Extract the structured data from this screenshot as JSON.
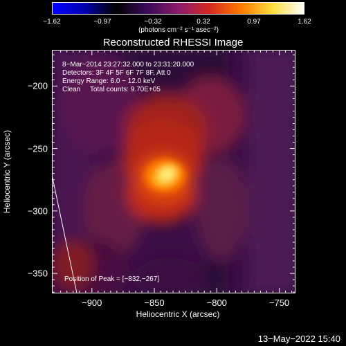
{
  "colorbar": {
    "ticks": [
      "-1.62",
      "-0.97",
      "-0.32",
      "0.32",
      "0.97",
      "1.62"
    ],
    "unit_label": "(photons cm⁻² s⁻¹ asec⁻²)",
    "colors": [
      "#0000ff",
      "#0000b0",
      "#000000",
      "#3a0a5a",
      "#8c1a6a",
      "#d42a20",
      "#ff7a00",
      "#ffdd40",
      "#ffffff"
    ]
  },
  "chart_data": {
    "type": "heatmap",
    "title": "Reconstructed RHESSI Image",
    "xlabel": "Heliocentric X (arcsec)",
    "ylabel": "Heliocentric Y (arcsec)",
    "xlim": [
      -932,
      -737
    ],
    "ylim": [
      -366,
      -171
    ],
    "xticks": [
      -900,
      -850,
      -800,
      -750
    ],
    "yticks": [
      -200,
      -250,
      -300,
      -350
    ],
    "xtick_labels": [
      "−900",
      "−850",
      "−800",
      "−750"
    ],
    "ytick_labels": [
      "−200",
      "−250",
      "−300",
      "−350"
    ],
    "peak": {
      "x": -832,
      "y": -267
    },
    "annotations": [
      "8−Mar−2014 23:27:32.000 to 23:31:20.000",
      "Detectors: 3F 4F 5F 6F 7F 8F, Att 0",
      "Energy Range: 6.0 − 12.0 keV",
      "Clean     Total counts: 9.70E+05"
    ],
    "peak_label": "Position of Peak = [−832,−267]",
    "limb_line": [
      [
        -932,
        -271
      ],
      [
        -912,
        -366
      ]
    ]
  },
  "timestamp": "13−May−2022 15:40"
}
